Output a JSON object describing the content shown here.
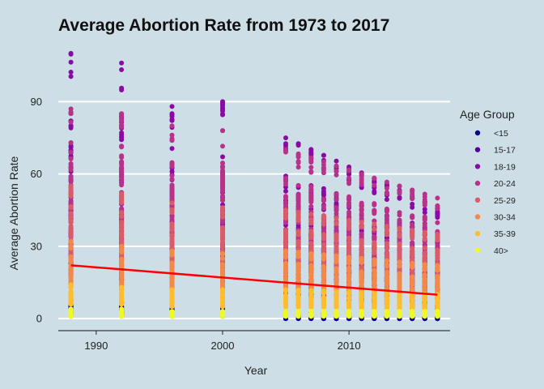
{
  "chart_data": {
    "type": "scatter",
    "title": "Average Abortion Rate from 1973 to 2017",
    "xlabel": "Year",
    "ylabel": "Average Abortion Rate",
    "xlim": [
      1986.8,
      2018.2
    ],
    "ylim": [
      -5,
      112
    ],
    "x_ticks": [
      1990,
      2000,
      2010
    ],
    "y_ticks": [
      0,
      30,
      60,
      90
    ],
    "x_tick_labels": [
      "1990",
      "2000",
      "2010"
    ],
    "y_tick_labels": [
      "0",
      "30",
      "60",
      "90"
    ],
    "grid": "horizontal major lines, white",
    "legend_placement": "right",
    "legend_title": "Age Group",
    "series": [
      {
        "name": "<15",
        "color": "#0d0887",
        "year_values": {
          "1988": [
            8,
            1
          ],
          "1992": [
            7,
            1
          ],
          "1996": [
            6,
            1
          ],
          "2000": [
            5,
            1
          ],
          "2005": [
            3,
            0
          ],
          "2017": [
            1,
            0
          ]
        }
      },
      {
        "name": "15-17",
        "color": "#5302a3",
        "year_values": {
          "1988": [
            45,
            18
          ],
          "1992": [
            42,
            16
          ],
          "1996": [
            38,
            14
          ],
          "2000": [
            36,
            13
          ],
          "2005": [
            33,
            10
          ],
          "2017": [
            18,
            4
          ]
        }
      },
      {
        "name": "18-19",
        "color": "#8b0aa5",
        "year_values": {
          "1988": [
            110,
            35
          ],
          "1992": [
            106,
            32
          ],
          "1996": [
            88,
            28
          ],
          "2000": [
            90,
            27
          ],
          "2005": [
            75,
            22
          ],
          "2017": [
            46,
            12
          ]
        }
      },
      {
        "name": "20-24",
        "color": "#b83289",
        "year_values": {
          "1988": [
            87,
            40
          ],
          "1992": [
            85,
            38
          ],
          "1996": [
            80,
            35
          ],
          "2000": [
            78,
            33
          ],
          "2005": [
            70,
            30
          ],
          "2017": [
            50,
            18
          ]
        }
      },
      {
        "name": "25-29",
        "color": "#db5c68",
        "year_values": {
          "1988": [
            55,
            25
          ],
          "1992": [
            52,
            24
          ],
          "1996": [
            48,
            22
          ],
          "2000": [
            46,
            21
          ],
          "2005": [
            45,
            20
          ],
          "2017": [
            35,
            13
          ]
        }
      },
      {
        "name": "30-34",
        "color": "#f48849",
        "year_values": {
          "1988": [
            32,
            13
          ],
          "1992": [
            30,
            12
          ],
          "1996": [
            28,
            11
          ],
          "2000": [
            27,
            11
          ],
          "2005": [
            28,
            11
          ],
          "2017": [
            22,
            8
          ]
        }
      },
      {
        "name": "35-39",
        "color": "#febd2a",
        "year_values": {
          "1988": [
            14,
            6
          ],
          "1992": [
            13,
            6
          ],
          "1996": [
            12,
            5
          ],
          "2000": [
            12,
            5
          ],
          "2005": [
            12,
            5
          ],
          "2017": [
            10,
            4
          ]
        }
      },
      {
        "name": "40>",
        "color": "#f0f921",
        "year_values": {
          "1988": [
            4,
            1
          ],
          "1992": [
            4,
            1
          ],
          "1996": [
            3,
            1
          ],
          "2000": [
            3,
            1
          ],
          "2005": [
            3,
            1
          ],
          "2017": [
            3,
            1
          ]
        }
      }
    ],
    "observed_years": [
      1988,
      1992,
      1996,
      2000,
      2005,
      2006,
      2007,
      2008,
      2009,
      2010,
      2011,
      2012,
      2013,
      2014,
      2015,
      2016,
      2017
    ],
    "trend_line": {
      "color": "#ff0000",
      "x": [
        1988,
        2017
      ],
      "y": [
        22.1,
        9.9
      ]
    }
  }
}
